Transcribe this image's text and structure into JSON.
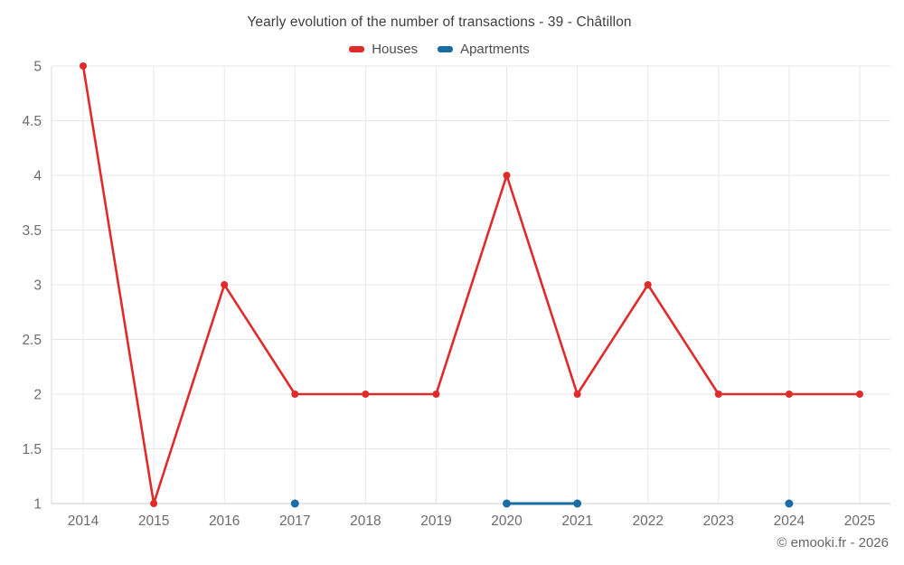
{
  "header": {
    "title": "Yearly evolution of the number of transactions - 39 - Châtillon"
  },
  "footer": {
    "watermark": "© emooki.fr - 2026"
  },
  "chart_data": {
    "type": "line",
    "title": "Yearly evolution of the number of transactions - 39 - Châtillon",
    "categories": [
      "2014",
      "2015",
      "2016",
      "2017",
      "2018",
      "2019",
      "2020",
      "2021",
      "2022",
      "2023",
      "2024",
      "2025"
    ],
    "series": [
      {
        "name": "Houses",
        "color": "#e02b2b",
        "values": [
          5,
          1,
          3,
          2,
          2,
          2,
          4,
          2,
          3,
          2,
          2,
          2
        ]
      },
      {
        "name": "Apartments",
        "color": "#1a6ca4",
        "values": [
          null,
          null,
          null,
          1,
          null,
          null,
          1,
          1,
          null,
          null,
          1,
          null
        ]
      }
    ],
    "xlabel": "",
    "ylabel": "",
    "ylim": [
      1,
      5
    ],
    "yticks": [
      1,
      1.5,
      2,
      2.5,
      3,
      3.5,
      4,
      4.5,
      5
    ],
    "grid": true,
    "legend_position": "top",
    "grid_color": "#e7e7e7",
    "y_axis_line_color": "#d9d9d9",
    "x_axis_line_color": "#cccccc",
    "tick_label_color": "#6b6b6b"
  }
}
